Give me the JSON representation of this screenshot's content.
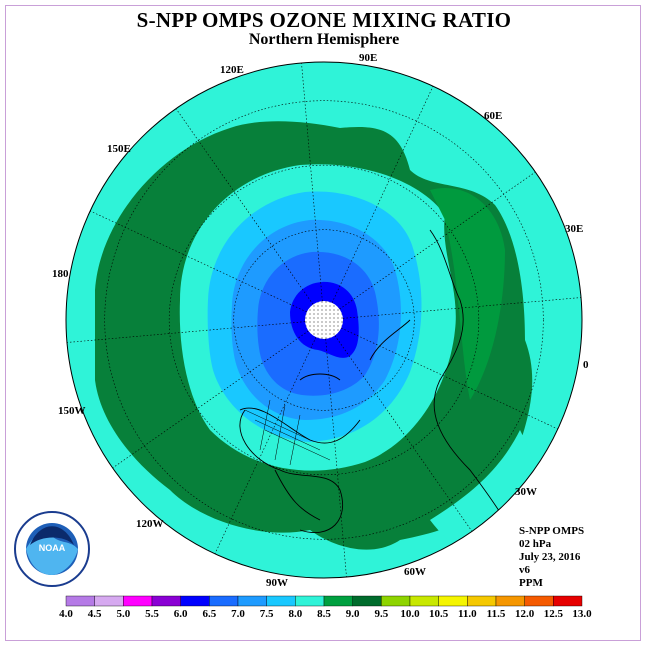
{
  "title": "S-NPP OMPS OZONE MIXING RATIO",
  "subtitle": "Northern Hemisphere",
  "longitude_labels": [
    {
      "text": "90E"
    },
    {
      "text": "120E"
    },
    {
      "text": "60E"
    },
    {
      "text": "150E"
    },
    {
      "text": "30E"
    },
    {
      "text": "180"
    },
    {
      "text": "0"
    },
    {
      "text": "150W"
    },
    {
      "text": "30W"
    },
    {
      "text": "120W"
    },
    {
      "text": "60W"
    },
    {
      "text": "90W"
    }
  ],
  "info": {
    "instrument": "S-NPP OMPS",
    "level": "02 hPa",
    "date": "July 23, 2016",
    "version": "v6",
    "units": "PPM"
  },
  "logo": {
    "text": "NOAA"
  },
  "colorbar": {
    "ticks": [
      "4.0",
      "4.5",
      "5.0",
      "5.5",
      "6.0",
      "6.5",
      "7.0",
      "7.5",
      "8.0",
      "8.5",
      "9.0",
      "9.5",
      "10.0",
      "10.5",
      "11.0",
      "11.5",
      "12.0",
      "12.5",
      "13.0"
    ],
    "colors": [
      "#b57ae6",
      "#d6a9f0",
      "#ff00ff",
      "#8a00d4",
      "#0000ff",
      "#1a6cff",
      "#1e9bff",
      "#19c8ff",
      "#2ff3d8",
      "#00a040",
      "#006c2c",
      "#8ed400",
      "#c8e800",
      "#f5f500",
      "#f5c800",
      "#f59600",
      "#f55a00",
      "#e60000",
      "#8b4a2b"
    ]
  },
  "colors": {
    "ring_outer": "#2ff3d8",
    "ring_dark_green": "#07803a",
    "ring_mid_green": "#009a3e",
    "ring_teal": "#2ff3d8",
    "ring_cyan": "#19c8ff",
    "ring_lightblue": "#1e9bff",
    "ring_blue": "#1a6cff",
    "ring_core": "#0000ff",
    "frame": "#c9a0d8"
  }
}
